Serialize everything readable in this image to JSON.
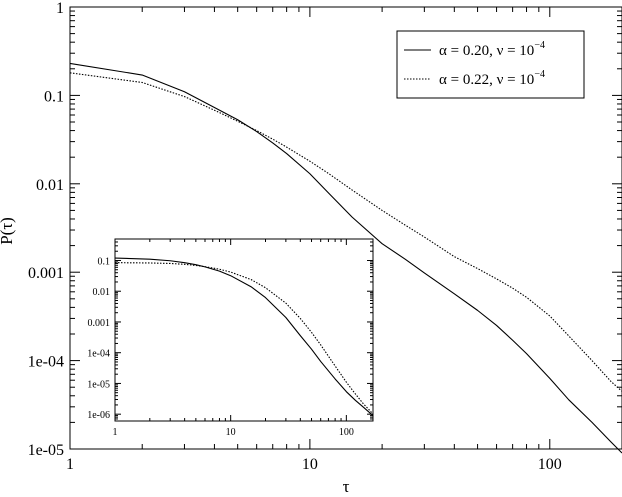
{
  "chart_data": [
    {
      "id": "main",
      "type": "line",
      "xscale": "log",
      "yscale": "log",
      "xlim": [
        1,
        200
      ],
      "ylim": [
        1e-05,
        1
      ],
      "xlabel": "τ",
      "ylabel": "P(τ)",
      "x_ticks": [
        {
          "value": 1,
          "label": "1"
        },
        {
          "value": 10,
          "label": "10"
        },
        {
          "value": 100,
          "label": "100"
        }
      ],
      "y_ticks": [
        {
          "value": 1,
          "label": "1"
        },
        {
          "value": 0.1,
          "label": "0.1"
        },
        {
          "value": 0.01,
          "label": "0.01"
        },
        {
          "value": 0.001,
          "label": "0.001"
        },
        {
          "value": 0.0001,
          "label": "1e-04"
        },
        {
          "value": 1e-05,
          "label": "1e-05"
        }
      ],
      "legend": {
        "placement": "top-right",
        "entries": [
          {
            "series": 0,
            "text": "α = 0.20, ν = 10",
            "sup": "−4"
          },
          {
            "series": 1,
            "text": "α = 0.22, ν = 10",
            "sup": "−4"
          }
        ]
      },
      "series": [
        {
          "style": "solid",
          "x": [
            1,
            2,
            3,
            4,
            5,
            6,
            7,
            8,
            10,
            12,
            15,
            20,
            25,
            30,
            40,
            50,
            60,
            70,
            80,
            100,
            120,
            150,
            180,
            200
          ],
          "y": [
            0.23,
            0.17,
            0.11,
            0.073,
            0.053,
            0.039,
            0.029,
            0.022,
            0.013,
            0.0078,
            0.0042,
            0.0021,
            0.0014,
            0.00098,
            0.00057,
            0.00037,
            0.00025,
            0.00017,
            0.00012,
            6.3e-05,
            3.6e-05,
            2e-05,
            1.2e-05,
            9e-06
          ]
        },
        {
          "style": "dotted",
          "x": [
            1,
            2,
            3,
            4,
            5,
            6,
            7,
            8,
            10,
            12,
            15,
            20,
            25,
            30,
            40,
            50,
            60,
            70,
            80,
            100,
            120,
            150,
            180,
            200
          ],
          "y": [
            0.18,
            0.14,
            0.097,
            0.068,
            0.051,
            0.04,
            0.032,
            0.026,
            0.018,
            0.013,
            0.0085,
            0.005,
            0.0034,
            0.0025,
            0.0015,
            0.0011,
            0.00084,
            0.00066,
            0.00052,
            0.00032,
            0.00019,
            0.0001,
            5.8e-05,
            4.5e-05
          ]
        }
      ]
    },
    {
      "id": "inset",
      "type": "line",
      "xscale": "log",
      "yscale": "log",
      "xlim": [
        1,
        170
      ],
      "ylim": [
        6e-07,
        0.5
      ],
      "x_ticks": [
        {
          "value": 1,
          "label": "1"
        },
        {
          "value": 10,
          "label": "10"
        },
        {
          "value": 100,
          "label": "100"
        }
      ],
      "y_ticks": [
        {
          "value": 0.1,
          "label": "0.1"
        },
        {
          "value": 0.01,
          "label": "0.01"
        },
        {
          "value": 0.001,
          "label": "0.001"
        },
        {
          "value": 0.0001,
          "label": "1e-04"
        },
        {
          "value": 1e-05,
          "label": "1e-05"
        },
        {
          "value": 1e-06,
          "label": "1e-06"
        }
      ],
      "series": [
        {
          "style": "solid",
          "x": [
            1,
            2,
            3,
            4,
            5,
            6,
            8,
            10,
            15,
            20,
            30,
            40,
            50,
            60,
            80,
            100,
            120,
            140,
            160,
            170
          ],
          "y": [
            0.12,
            0.11,
            0.098,
            0.085,
            0.073,
            0.062,
            0.045,
            0.032,
            0.014,
            0.0062,
            0.0014,
            0.00036,
            0.00013,
            5.2e-05,
            1.4e-05,
            5.4e-06,
            2.8e-06,
            1.7e-06,
            1.1e-06,
            9e-07
          ]
        },
        {
          "style": "dotted",
          "x": [
            1,
            2,
            3,
            4,
            5,
            6,
            8,
            10,
            15,
            20,
            30,
            40,
            50,
            60,
            80,
            100,
            120,
            140,
            160,
            170
          ],
          "y": [
            0.085,
            0.083,
            0.08,
            0.075,
            0.069,
            0.063,
            0.052,
            0.042,
            0.024,
            0.013,
            0.0041,
            0.0013,
            0.00046,
            0.00018,
            3.7e-05,
            1.1e-05,
            4.5e-06,
            2.2e-06,
            1.3e-06,
            1e-06
          ]
        }
      ]
    }
  ]
}
